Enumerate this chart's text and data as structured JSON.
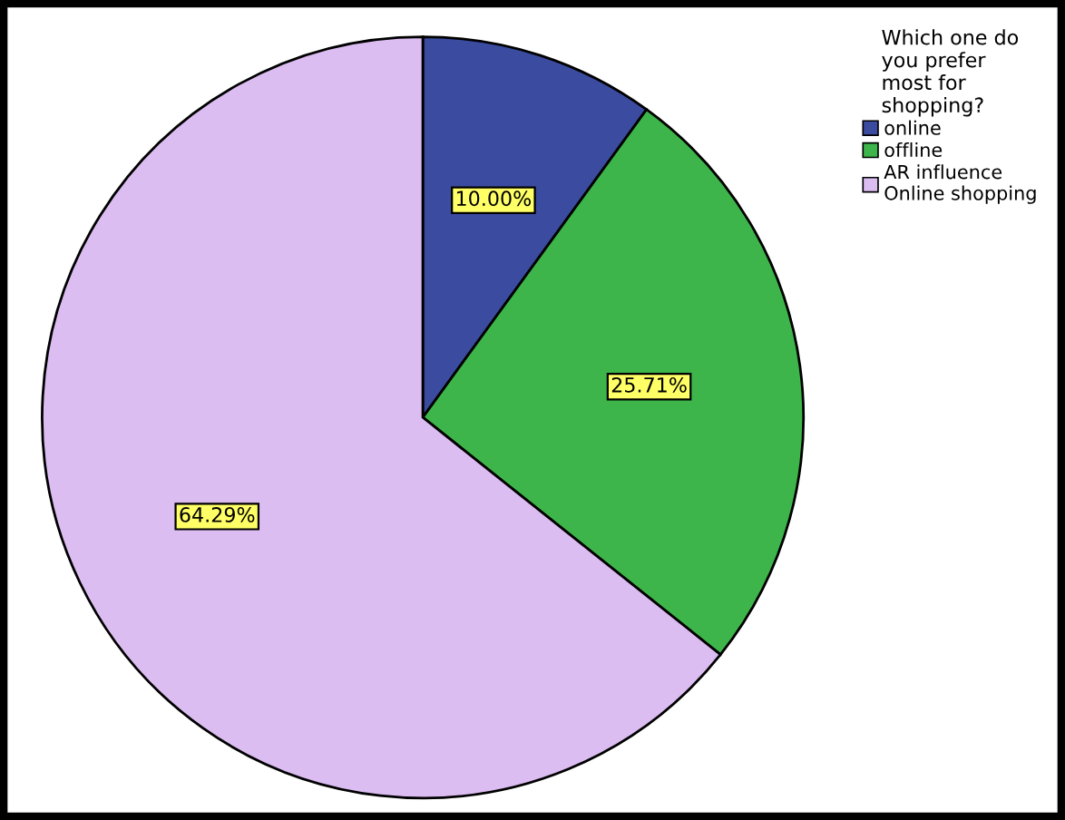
{
  "chart_data": {
    "type": "pie",
    "legend_title": "Which one do\nyou prefer\nmost for\nshopping?",
    "categories": [
      "online",
      "offline",
      "AR influence\nOnline shopping"
    ],
    "values": [
      10.0,
      25.71,
      64.29
    ],
    "colors": [
      "#3b4b9f",
      "#3db54a",
      "#dcbdf2"
    ],
    "value_labels": [
      "10.00%",
      "25.71%",
      "64.29%"
    ],
    "legend": "top right"
  }
}
